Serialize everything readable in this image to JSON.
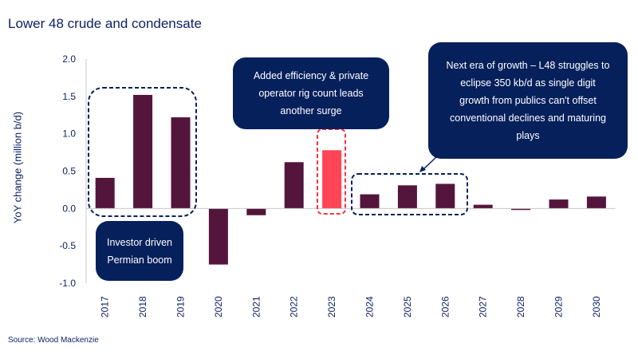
{
  "chart_data": {
    "type": "bar",
    "title": "Lower 48 crude and condensate",
    "ylabel": "YoY change (million b/d)",
    "xlabel": "",
    "ylim": [
      -1.0,
      2.0
    ],
    "yticks": [
      "2.0",
      "1.5",
      "1.0",
      "0.5",
      "0.0",
      "-0.5",
      "-1.0"
    ],
    "grid": false,
    "categories": [
      "2017",
      "2018",
      "2019",
      "2020",
      "2021",
      "2022",
      "2023",
      "2024",
      "2025",
      "2026",
      "2027",
      "2028",
      "2029",
      "2030"
    ],
    "values": [
      0.41,
      1.52,
      1.22,
      -0.75,
      -0.09,
      0.62,
      0.78,
      0.19,
      0.31,
      0.33,
      0.05,
      -0.02,
      0.12,
      0.16
    ],
    "colors": {
      "default": "#54153d",
      "highlight": "#ff4455",
      "highlight_category": "2023"
    },
    "annotations": [
      "Investor driven Permian boom",
      "Added efficiency & private operator rig count leads another surge",
      "Next era of growth – L48 struggles to eclipse 350 kb/d as single digit growth from publics can't offset conventional declines and maturing plays"
    ]
  },
  "source": "Source: Wood Mackenzie",
  "annotation_color": "#06205c"
}
